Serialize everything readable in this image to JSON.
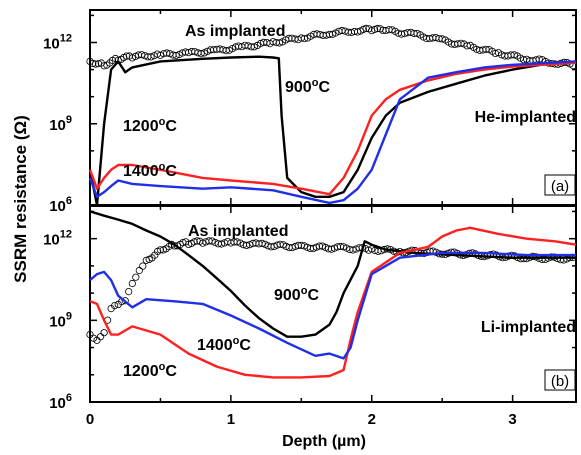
{
  "figure": {
    "ylabel": "SSRM resistance (Ω)",
    "xlabel": "Depth (µm)",
    "xticks": [
      "0",
      "1",
      "2",
      "3"
    ],
    "yticks": [
      {
        "base": "10",
        "exp": "6"
      },
      {
        "base": "10",
        "exp": "9"
      },
      {
        "base": "10",
        "exp": "12"
      }
    ]
  },
  "colors": {
    "asimplanted": "#000000",
    "t900": "#000000",
    "t1200": "#ff2020",
    "t1400": "#1f2fe6",
    "axis": "#000000"
  },
  "chart_data": [
    {
      "type": "line",
      "panel_label": "(a)",
      "annotation": "He-implanted",
      "xlim": [
        0,
        3.45
      ],
      "ylim_log10": [
        6,
        13.2
      ],
      "yscale": "log",
      "series": [
        {
          "name": "As implanted",
          "label": "As implanted",
          "marker": "open-circle",
          "color_key": "asimplanted",
          "x": [
            0.0,
            0.1,
            0.2,
            0.3,
            0.5,
            0.7,
            0.9,
            1.1,
            1.3,
            1.5,
            1.7,
            1.9,
            2.0,
            2.1,
            2.3,
            2.5,
            2.7,
            2.9,
            3.1,
            3.3,
            3.45
          ],
          "y": [
            200000000000.0,
            150000000000.0,
            250000000000.0,
            300000000000.0,
            350000000000.0,
            400000000000.0,
            500000000000.0,
            700000000000.0,
            1000000000000.0,
            1500000000000.0,
            2200000000000.0,
            2800000000000.0,
            3000000000000.0,
            2800000000000.0,
            2000000000000.0,
            1200000000000.0,
            700000000000.0,
            400000000000.0,
            250000000000.0,
            180000000000.0,
            150000000000.0
          ]
        },
        {
          "name": "900°C",
          "label": "900°C",
          "color_key": "t900",
          "x": [
            0.0,
            0.05,
            0.1,
            0.15,
            0.2,
            0.25,
            0.3,
            0.5,
            0.8,
            1.0,
            1.2,
            1.3,
            1.34,
            1.36,
            1.4,
            1.5,
            1.6,
            1.7,
            1.8,
            1.9,
            2.0,
            2.1,
            2.2,
            2.4,
            2.6,
            2.8,
            3.0,
            3.2,
            3.45
          ],
          "y": [
            20000000.0,
            1000000.0,
            1000000000.0,
            100000000000.0,
            200000000000.0,
            80000000000.0,
            120000000000.0,
            200000000000.0,
            250000000000.0,
            280000000000.0,
            300000000000.0,
            280000000000.0,
            260000000000.0,
            2000000000.0,
            10000000.0,
            3000000.0,
            2000000.0,
            2000000.0,
            3000000.0,
            20000000.0,
            300000000.0,
            2000000000.0,
            6000000000.0,
            15000000000.0,
            30000000000.0,
            60000000000.0,
            100000000000.0,
            150000000000.0,
            200000000000.0
          ]
        },
        {
          "name": "1200°C",
          "label": "1200°C",
          "color_key": "t1200",
          "x": [
            0.0,
            0.05,
            0.1,
            0.15,
            0.2,
            0.3,
            0.5,
            0.8,
            1.0,
            1.3,
            1.5,
            1.7,
            1.8,
            1.9,
            2.0,
            2.1,
            2.2,
            2.4,
            2.6,
            2.8,
            3.0,
            3.2,
            3.45
          ],
          "y": [
            20000000.0,
            4000000.0,
            10000000.0,
            20000000.0,
            30000000.0,
            30000000.0,
            20000000.0,
            10000000.0,
            8000000.0,
            6000000.0,
            4000000.0,
            2500000.0,
            10000000.0,
            100000000.0,
            2000000000.0,
            8000000000.0,
            18000000000.0,
            40000000000.0,
            70000000000.0,
            100000000000.0,
            130000000000.0,
            150000000000.0,
            180000000000.0
          ]
        },
        {
          "name": "1400°C",
          "label": "1400°C",
          "color_key": "t1400",
          "x": [
            0.0,
            0.05,
            0.1,
            0.15,
            0.2,
            0.3,
            0.5,
            0.8,
            1.0,
            1.3,
            1.5,
            1.7,
            1.8,
            1.9,
            2.0,
            2.1,
            2.2,
            2.4,
            2.6,
            2.8,
            3.0,
            3.2,
            3.45
          ],
          "y": [
            10000000.0,
            2000000.0,
            3000000.0,
            5000000.0,
            8000000.0,
            6000000.0,
            5000000.0,
            4000000.0,
            4500000.0,
            3500000.0,
            2000000.0,
            1200000.0,
            1500000.0,
            4000000.0,
            20000000.0,
            400000000.0,
            8000000000.0,
            50000000000.0,
            80000000000.0,
            120000000000.0,
            150000000000.0,
            170000000000.0,
            200000000000.0
          ]
        }
      ]
    },
    {
      "type": "line",
      "panel_label": "(b)",
      "annotation": "Li-implanted",
      "xlim": [
        0,
        3.45
      ],
      "ylim_log10": [
        6,
        13.2
      ],
      "yscale": "log",
      "series": [
        {
          "name": "As implanted",
          "label": "As implanted",
          "marker": "open-circle",
          "color_key": "asimplanted",
          "x": [
            0.0,
            0.05,
            0.1,
            0.15,
            0.2,
            0.25,
            0.3,
            0.35,
            0.4,
            0.5,
            0.6,
            0.7,
            0.8,
            1.0,
            1.2,
            1.5,
            1.8,
            2.0,
            2.2,
            2.5,
            2.8,
            3.1,
            3.45
          ],
          "y": [
            300000000.0,
            200000000.0,
            400000000.0,
            3000000000.0,
            4000000000.0,
            5000000000.0,
            20000000000.0,
            60000000000.0,
            150000000000.0,
            400000000000.0,
            600000000000.0,
            700000000000.0,
            750000000000.0,
            700000000000.0,
            600000000000.0,
            500000000000.0,
            450000000000.0,
            400000000000.0,
            350000000000.0,
            300000000000.0,
            250000000000.0,
            200000000000.0,
            180000000000.0
          ]
        },
        {
          "name": "900°C",
          "label": "900°C",
          "color_key": "t900",
          "x": [
            0.0,
            0.1,
            0.2,
            0.3,
            0.4,
            0.5,
            0.6,
            0.7,
            0.8,
            0.9,
            1.0,
            1.1,
            1.2,
            1.3,
            1.4,
            1.5,
            1.6,
            1.7,
            1.75,
            1.8,
            1.9,
            1.95,
            2.0,
            2.1,
            2.3,
            2.6,
            3.0,
            3.45
          ],
          "y": [
            10000000000000.0,
            7000000000000.0,
            5000000000000.0,
            3500000000000.0,
            2000000000000.0,
            1200000000000.0,
            600000000000.0,
            250000000000.0,
            100000000000.0,
            35000000000.0,
            12000000000.0,
            3500000000.0,
            1200000000.0,
            500000000.0,
            250000000.0,
            250000000.0,
            300000000.0,
            700000000.0,
            2000000000.0,
            10000000000.0,
            100000000000.0,
            800000000000.0,
            600000000000.0,
            400000000000.0,
            300000000000.0,
            250000000000.0,
            200000000000.0,
            200000000000.0
          ]
        },
        {
          "name": "1200°C",
          "label": "1200°C",
          "color_key": "t1200",
          "x": [
            0.0,
            0.05,
            0.1,
            0.15,
            0.2,
            0.3,
            0.5,
            0.7,
            0.9,
            1.1,
            1.3,
            1.5,
            1.7,
            1.8,
            1.85,
            1.9,
            2.0,
            2.2,
            2.4,
            2.5,
            2.6,
            2.7,
            2.9,
            3.1,
            3.3,
            3.45
          ],
          "y": [
            5000000000.0,
            4000000000.0,
            1000000000.0,
            300000000.0,
            300000000.0,
            600000000.0,
            300000000.0,
            60000000.0,
            20000000.0,
            10000000.0,
            8000000.0,
            8000000.0,
            9000000.0,
            15000000.0,
            200000000.0,
            2000000000.0,
            60000000000.0,
            300000000000.0,
            500000000000.0,
            1200000000000.0,
            2000000000000.0,
            2500000000000.0,
            1500000000000.0,
            1000000000000.0,
            800000000000.0,
            600000000000.0
          ]
        },
        {
          "name": "1400°C",
          "label": "1400°C",
          "color_key": "t1400",
          "x": [
            0.0,
            0.05,
            0.1,
            0.15,
            0.2,
            0.3,
            0.4,
            0.6,
            0.8,
            1.0,
            1.2,
            1.4,
            1.6,
            1.7,
            1.8,
            1.85,
            1.9,
            2.0,
            2.2,
            2.5,
            2.8,
            3.1,
            3.45
          ],
          "y": [
            30000000000.0,
            50000000000.0,
            60000000000.0,
            30000000000.0,
            8000000000.0,
            3000000000.0,
            6000000000.0,
            5000000000.0,
            4000000000.0,
            1500000000.0,
            500000000.0,
            150000000.0,
            50000000.0,
            60000000.0,
            40000000.0,
            100000000.0,
            1000000000.0,
            50000000000.0,
            200000000000.0,
            300000000000.0,
            300000000000.0,
            250000000000.0,
            250000000000.0
          ]
        }
      ]
    }
  ]
}
